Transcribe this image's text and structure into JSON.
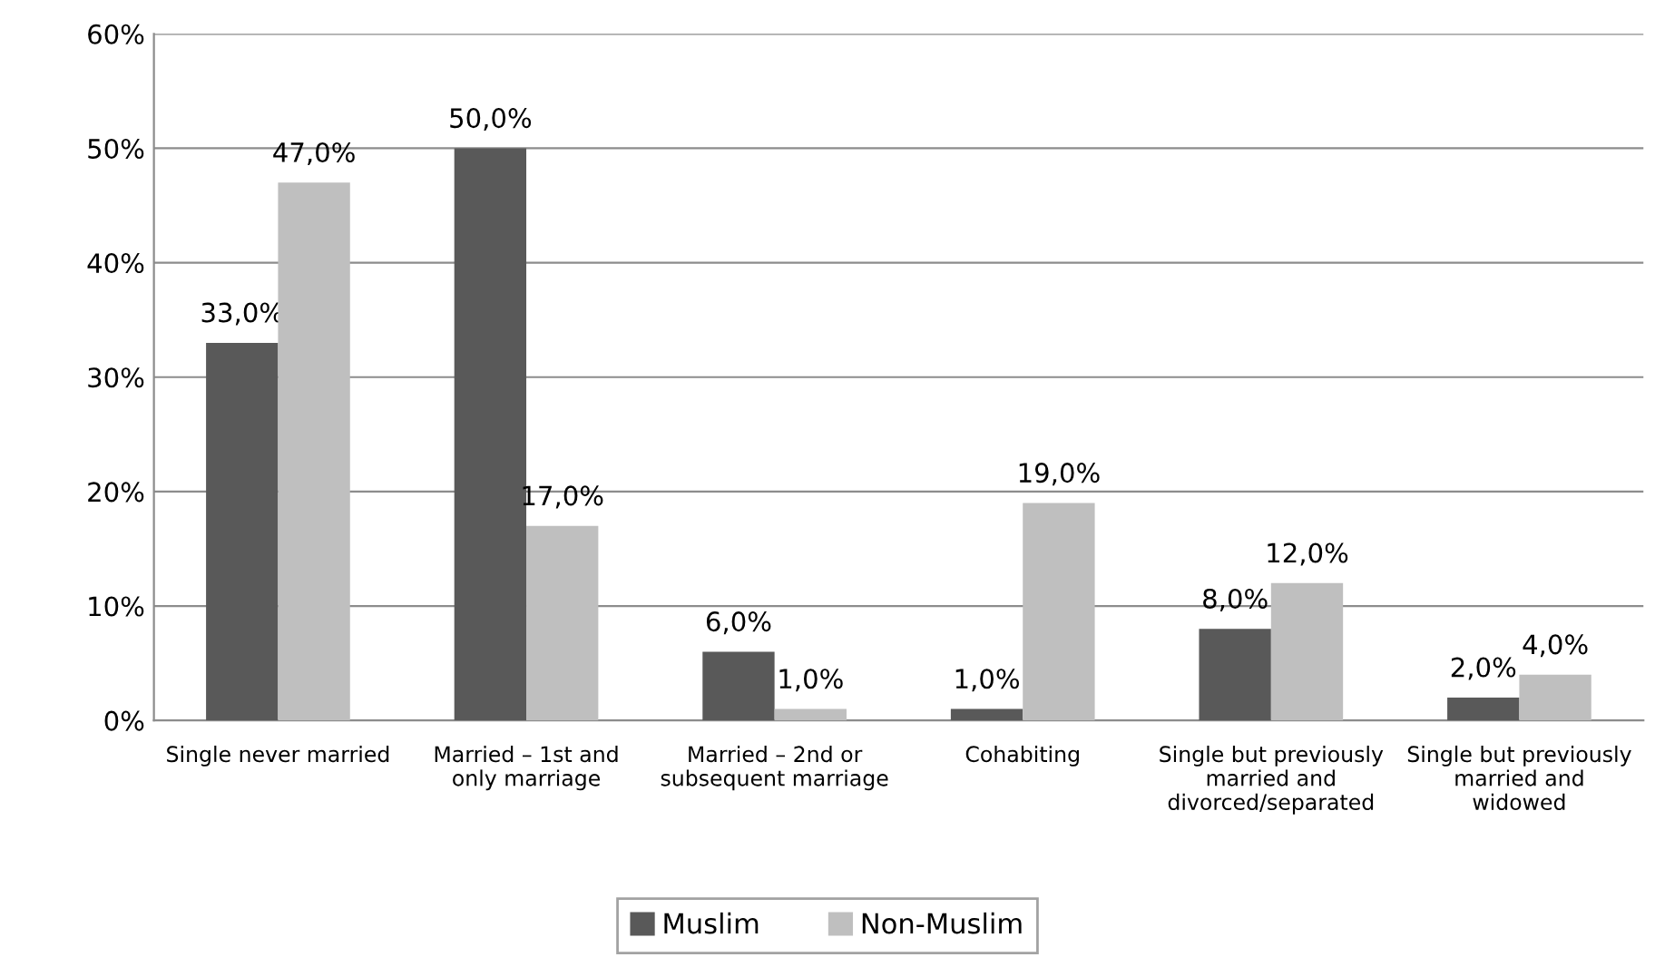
{
  "chart_data": {
    "type": "bar",
    "categories": [
      "Single never married",
      "Married – 1st and\nonly marriage",
      "Married – 2nd or\nsubsequent marriage",
      "Cohabiting",
      "Single but previously\nmarried and\ndivorced/separated",
      "Single but previously\nmarried and\nwidowed"
    ],
    "series": [
      {
        "name": "Muslim",
        "color": "#595959",
        "values": [
          33.0,
          50.0,
          6.0,
          1.0,
          8.0,
          2.0
        ],
        "value_labels": [
          "33,0%",
          "50,0%",
          "6,0%",
          "1,0%",
          "8,0%",
          "2,0%"
        ]
      },
      {
        "name": "Non-Muslim",
        "color": "#bfbfbf",
        "values": [
          47.0,
          17.0,
          1.0,
          19.0,
          12.0,
          4.0
        ],
        "value_labels": [
          "47,0%",
          "17,0%",
          "1,0%",
          "19,0%",
          "12,0%",
          "4,0%"
        ]
      }
    ],
    "ylim": [
      0,
      60
    ],
    "yticks": [
      {
        "value": 0,
        "label": "0%"
      },
      {
        "value": 10,
        "label": "10%"
      },
      {
        "value": 20,
        "label": "20%"
      },
      {
        "value": 30,
        "label": "30%"
      },
      {
        "value": 40,
        "label": "40%"
      },
      {
        "value": 50,
        "label": "50%"
      },
      {
        "value": 60,
        "label": "60%"
      }
    ],
    "grid": "y",
    "legend": "bottom"
  }
}
